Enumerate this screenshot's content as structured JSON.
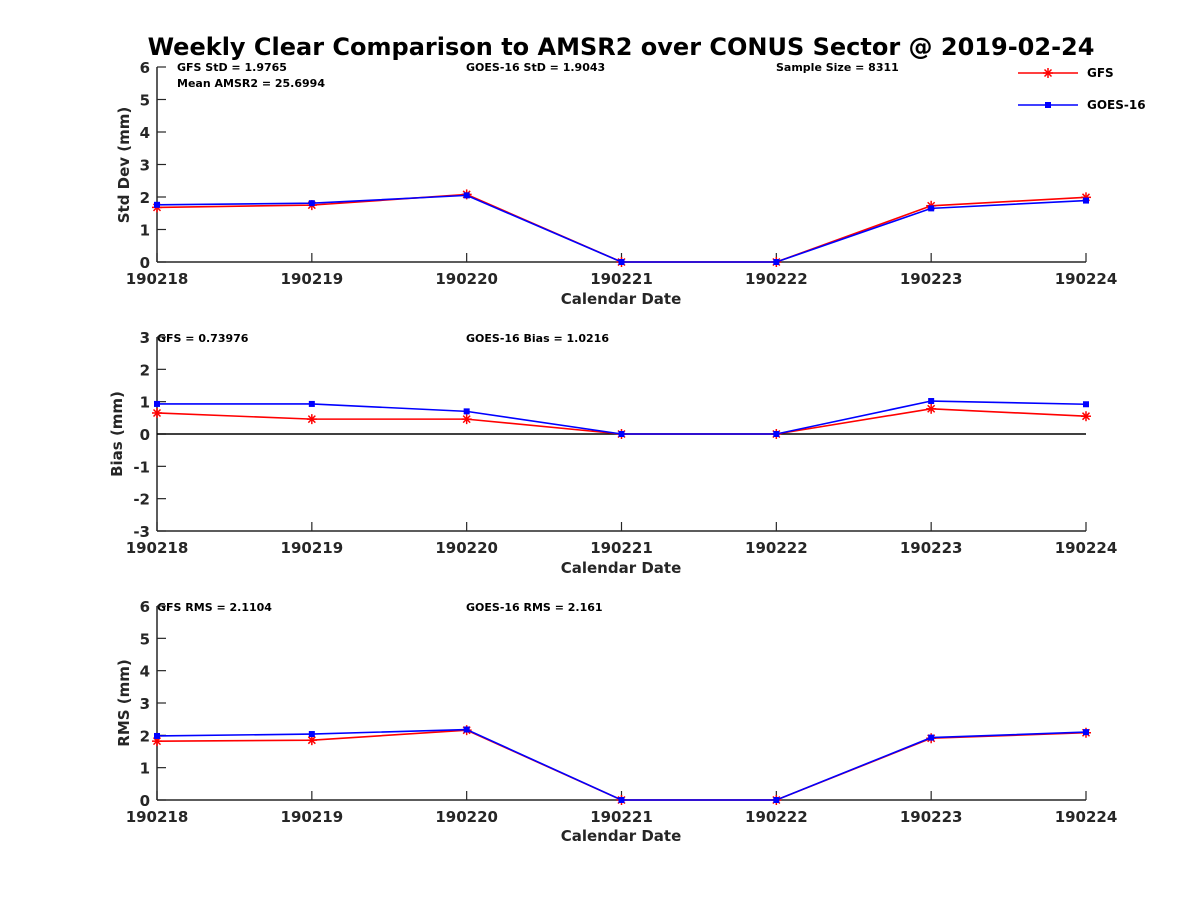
{
  "figure_title": "Weekly Clear Comparison to AMSR2 over CONUS Sector @ 2019-02-24",
  "colors": {
    "gfs": "#ff0000",
    "goes": "#0000ff",
    "axis": "#262626",
    "zero_line": "#000000"
  },
  "legend": [
    {
      "name": "GFS",
      "marker": "asterisk",
      "color": "#ff0000"
    },
    {
      "name": "GOES-16",
      "marker": "square",
      "color": "#0000ff"
    }
  ],
  "chart_data": [
    {
      "type": "line",
      "id": "stddev",
      "categories": [
        "190218",
        "190219",
        "190220",
        "190221",
        "190222",
        "190223",
        "190224"
      ],
      "xlabel": "Calendar Date",
      "ylabel": "Std Dev (mm)",
      "ylim": [
        0,
        6
      ],
      "yticks": [
        "0",
        "1",
        "2",
        "3",
        "4",
        "5",
        "6"
      ],
      "zero_line": false,
      "series": [
        {
          "name": "GFS",
          "values": [
            1.68,
            1.75,
            2.08,
            0.0,
            0.0,
            1.73,
            1.99
          ]
        },
        {
          "name": "GOES-16",
          "values": [
            1.76,
            1.81,
            2.05,
            0.0,
            0.0,
            1.65,
            1.89
          ]
        }
      ],
      "annotations": [
        "GFS StD = 1.9765",
        "Mean AMSR2 = 25.6994",
        "GOES-16 StD = 1.9043",
        "Sample Size = 8311"
      ]
    },
    {
      "type": "line",
      "id": "bias",
      "categories": [
        "190218",
        "190219",
        "190220",
        "190221",
        "190222",
        "190223",
        "190224"
      ],
      "xlabel": "Calendar Date",
      "ylabel": "Bias (mm)",
      "ylim": [
        -3,
        3
      ],
      "yticks": [
        "-3",
        "-2",
        "-1",
        "0",
        "1",
        "2",
        "3"
      ],
      "zero_line": true,
      "series": [
        {
          "name": "GFS",
          "values": [
            0.65,
            0.46,
            0.46,
            0.0,
            0.0,
            0.78,
            0.55
          ]
        },
        {
          "name": "GOES-16",
          "values": [
            0.93,
            0.93,
            0.7,
            0.0,
            0.0,
            1.02,
            0.92
          ]
        }
      ],
      "annotations": [
        "GFS = 0.73976",
        "GOES-16 Bias  = 1.0216"
      ]
    },
    {
      "type": "line",
      "id": "rms",
      "categories": [
        "190218",
        "190219",
        "190220",
        "190221",
        "190222",
        "190223",
        "190224"
      ],
      "xlabel": "Calendar Date",
      "ylabel": "RMS (mm)",
      "ylim": [
        0,
        6
      ],
      "yticks": [
        "0",
        "1",
        "2",
        "3",
        "4",
        "5",
        "6"
      ],
      "zero_line": false,
      "series": [
        {
          "name": "GFS",
          "values": [
            1.82,
            1.85,
            2.16,
            0.0,
            0.0,
            1.91,
            2.08
          ]
        },
        {
          "name": "GOES-16",
          "values": [
            1.98,
            2.04,
            2.18,
            0.0,
            0.0,
            1.93,
            2.1
          ]
        }
      ],
      "annotations": [
        "GFS RMS = 2.1104",
        "GOES-16 RMS = 2.161"
      ]
    }
  ]
}
